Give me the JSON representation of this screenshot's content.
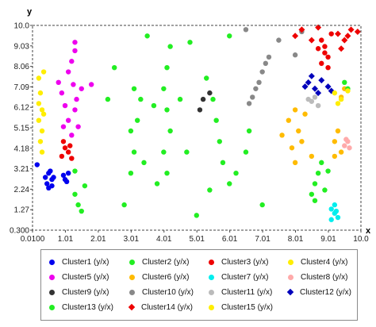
{
  "chart_data": {
    "type": "scatter",
    "title": "",
    "xlabel": "x",
    "ylabel": "y",
    "xlim": [
      0.01,
      10.0
    ],
    "ylim": [
      0.3,
      10.0
    ],
    "x_ticks": [
      "0.0100",
      "1.01",
      "2.01",
      "3.01",
      "4.01",
      "5.01",
      "6.01",
      "7.01",
      "8.01",
      "9.01",
      "10.0"
    ],
    "y_ticks": [
      "0.300",
      "1.27",
      "2.24",
      "3.21",
      "4.18",
      "5.15",
      "6.12",
      "7.09",
      "8.06",
      "9.03",
      "10.0"
    ],
    "x_tick_values": [
      0.01,
      1.01,
      2.01,
      3.01,
      4.01,
      5.01,
      6.01,
      7.01,
      8.01,
      9.01,
      10.0
    ],
    "y_tick_values": [
      0.3,
      1.27,
      2.24,
      3.21,
      4.18,
      5.15,
      6.12,
      7.09,
      8.06,
      9.03,
      10.0
    ],
    "grid": false,
    "legend_position": "bottom",
    "series": [
      {
        "name": "Cluster1 (y/x)",
        "color": "#0000ee",
        "marker": "circle",
        "points": [
          [
            0.5,
            3.0
          ],
          [
            0.6,
            2.7
          ],
          [
            0.45,
            2.5
          ],
          [
            0.55,
            3.1
          ],
          [
            0.65,
            2.8
          ],
          [
            0.5,
            2.3
          ],
          [
            0.6,
            2.4
          ],
          [
            0.4,
            2.8
          ],
          [
            1.0,
            2.7
          ],
          [
            1.1,
            3.0
          ],
          [
            0.95,
            2.9
          ],
          [
            1.05,
            2.6
          ],
          [
            0.15,
            3.4
          ]
        ]
      },
      {
        "name": "Cluster2 (y/x)",
        "color": "#22ee22",
        "marker": "circle",
        "points": [
          [
            3.0,
            3.0
          ],
          [
            3.1,
            4.0
          ],
          [
            3.0,
            5.0
          ],
          [
            3.2,
            5.5
          ],
          [
            3.3,
            6.5
          ],
          [
            3.1,
            7.0
          ],
          [
            3.4,
            3.5
          ],
          [
            4.1,
            3.0
          ],
          [
            4.0,
            4.0
          ],
          [
            4.2,
            5.0
          ],
          [
            4.1,
            6.0
          ],
          [
            4.0,
            7.0
          ],
          [
            4.1,
            8.0
          ],
          [
            4.2,
            9.0
          ],
          [
            4.5,
            6.5
          ],
          [
            5.3,
            7.5
          ],
          [
            5.5,
            6.5
          ],
          [
            5.6,
            5.5
          ],
          [
            5.7,
            4.5
          ],
          [
            5.8,
            3.5
          ],
          [
            6.0,
            2.5
          ],
          [
            6.2,
            3.0
          ],
          [
            6.5,
            4.0
          ],
          [
            6.6,
            5.0
          ],
          [
            3.8,
            2.5
          ],
          [
            2.8,
            1.5
          ],
          [
            5.0,
            1.0
          ],
          [
            7.0,
            1.5
          ],
          [
            2.5,
            8.0
          ],
          [
            3.5,
            9.5
          ],
          [
            4.8,
            9.2
          ],
          [
            6.0,
            9.5
          ],
          [
            2.3,
            6.5
          ],
          [
            3.7,
            6.2
          ],
          [
            4.7,
            4.0
          ],
          [
            5.4,
            2.2
          ]
        ]
      },
      {
        "name": "Cluster3 (y/x)",
        "color": "#ee0000",
        "marker": "circle",
        "points": [
          [
            1.0,
            4.2
          ],
          [
            1.1,
            4.0
          ],
          [
            0.9,
            3.8
          ],
          [
            1.2,
            3.7
          ],
          [
            0.95,
            4.5
          ],
          [
            1.15,
            4.3
          ],
          [
            8.8,
            9.3
          ],
          [
            8.9,
            9.0
          ],
          [
            9.0,
            8.5
          ],
          [
            8.8,
            8.2
          ],
          [
            8.9,
            8.7
          ],
          [
            9.1,
            9.6
          ],
          [
            9.0,
            8.0
          ],
          [
            8.7,
            8.9
          ]
        ]
      },
      {
        "name": "Cluster4 (y/x)",
        "color": "#ffee00",
        "marker": "circle",
        "points": [
          [
            0.2,
            7.5
          ],
          [
            0.25,
            6.8
          ],
          [
            0.3,
            6.0
          ],
          [
            0.2,
            5.5
          ],
          [
            0.3,
            5.0
          ],
          [
            0.25,
            4.5
          ],
          [
            0.35,
            7.8
          ],
          [
            0.3,
            4.0
          ],
          [
            0.2,
            6.3
          ],
          [
            0.35,
            5.8
          ]
        ]
      },
      {
        "name": "Cluster5 (y/x)",
        "color": "#ee00ee",
        "marker": "circle",
        "points": [
          [
            0.8,
            7.3
          ],
          [
            0.9,
            6.8
          ],
          [
            1.0,
            6.2
          ],
          [
            1.1,
            7.8
          ],
          [
            1.2,
            8.3
          ],
          [
            1.3,
            8.8
          ],
          [
            1.25,
            7.2
          ],
          [
            1.3,
            6.0
          ],
          [
            1.1,
            5.5
          ],
          [
            1.2,
            4.8
          ],
          [
            0.95,
            5.2
          ],
          [
            1.35,
            6.5
          ],
          [
            1.5,
            7.0
          ],
          [
            1.8,
            7.2
          ],
          [
            1.4,
            5.2
          ],
          [
            1.3,
            9.2
          ]
        ]
      },
      {
        "name": "Cluster6 (y/x)",
        "color": "#ffbb00",
        "marker": "circle",
        "points": [
          [
            8.0,
            6.0
          ],
          [
            8.1,
            5.0
          ],
          [
            8.2,
            4.5
          ],
          [
            7.8,
            5.5
          ],
          [
            8.3,
            5.8
          ],
          [
            7.9,
            4.2
          ],
          [
            8.5,
            3.8
          ],
          [
            8.0,
            3.5
          ],
          [
            9.2,
            4.5
          ],
          [
            9.3,
            5.0
          ],
          [
            9.4,
            4.0
          ],
          [
            9.2,
            3.8
          ],
          [
            9.5,
            7.0
          ],
          [
            9.4,
            6.6
          ],
          [
            7.6,
            4.8
          ]
        ]
      },
      {
        "name": "Cluster7 (y/x)",
        "color": "#00eeee",
        "marker": "circle",
        "points": [
          [
            9.1,
            1.3
          ],
          [
            9.2,
            1.1
          ],
          [
            9.2,
            1.5
          ],
          [
            9.3,
            0.9
          ],
          [
            9.1,
            0.8
          ],
          [
            9.25,
            1.2
          ]
        ]
      },
      {
        "name": "Cluster8 (y/x)",
        "color": "#ffaaaa",
        "marker": "circle",
        "points": [
          [
            9.6,
            4.5
          ],
          [
            9.5,
            4.3
          ],
          [
            9.65,
            4.2
          ],
          [
            9.55,
            4.6
          ]
        ]
      },
      {
        "name": "Cluster9 (y/x)",
        "color": "#333333",
        "marker": "circle",
        "points": [
          [
            5.2,
            6.5
          ],
          [
            5.4,
            6.8
          ],
          [
            5.1,
            6.0
          ]
        ]
      },
      {
        "name": "Cluster10 (y/x)",
        "color": "#888888",
        "marker": "circle",
        "points": [
          [
            7.0,
            7.8
          ],
          [
            6.9,
            7.3
          ],
          [
            6.8,
            7.0
          ],
          [
            7.1,
            8.2
          ],
          [
            6.7,
            6.6
          ],
          [
            6.6,
            6.3
          ],
          [
            7.2,
            8.5
          ],
          [
            6.5,
            9.8
          ],
          [
            7.5,
            9.3
          ],
          [
            8.0,
            8.6
          ],
          [
            8.2,
            9.7
          ]
        ]
      },
      {
        "name": "Cluster11 (y/x)",
        "color": "#bbbbbb",
        "marker": "circle",
        "points": [
          [
            8.5,
            6.4
          ],
          [
            8.6,
            6.6
          ],
          [
            8.7,
            6.2
          ],
          [
            8.4,
            6.5
          ]
        ]
      },
      {
        "name": "Cluster12 (y/x)",
        "color": "#0000bb",
        "marker": "diamond",
        "points": [
          [
            8.4,
            7.3
          ],
          [
            8.6,
            7.0
          ],
          [
            8.8,
            7.4
          ],
          [
            9.0,
            7.1
          ],
          [
            8.7,
            6.8
          ],
          [
            8.5,
            7.6
          ],
          [
            9.1,
            6.9
          ],
          [
            8.3,
            7.1
          ]
        ]
      },
      {
        "name": "Cluster13 (y/x)",
        "color": "#22ee22",
        "marker": "circle",
        "points": [
          [
            8.6,
            2.5
          ],
          [
            8.7,
            3.0
          ],
          [
            8.8,
            3.5
          ],
          [
            8.5,
            2.0
          ],
          [
            8.9,
            2.2
          ],
          [
            9.0,
            3.1
          ],
          [
            8.6,
            1.7
          ],
          [
            1.3,
            2.0
          ],
          [
            1.4,
            1.5
          ],
          [
            1.6,
            2.4
          ],
          [
            1.3,
            3.1
          ],
          [
            1.5,
            1.2
          ],
          [
            9.5,
            7.3
          ],
          [
            9.6,
            7.0
          ]
        ]
      },
      {
        "name": "Cluster14 (y/x)",
        "color": "#ee0000",
        "marker": "diamond",
        "points": [
          [
            8.0,
            9.5
          ],
          [
            8.2,
            9.8
          ],
          [
            8.5,
            9.3
          ],
          [
            9.3,
            9.6
          ],
          [
            9.5,
            9.3
          ],
          [
            9.7,
            9.8
          ],
          [
            9.9,
            9.7
          ],
          [
            9.4,
            8.9
          ],
          [
            9.6,
            9.5
          ],
          [
            8.7,
            9.9
          ]
        ]
      },
      {
        "name": "Cluster15 (y/x)",
        "color": "#ffee00",
        "marker": "circle",
        "points": [
          [
            9.2,
            6.8
          ],
          [
            9.4,
            6.5
          ],
          [
            9.6,
            6.9
          ],
          [
            9.3,
            6.3
          ]
        ]
      }
    ]
  }
}
